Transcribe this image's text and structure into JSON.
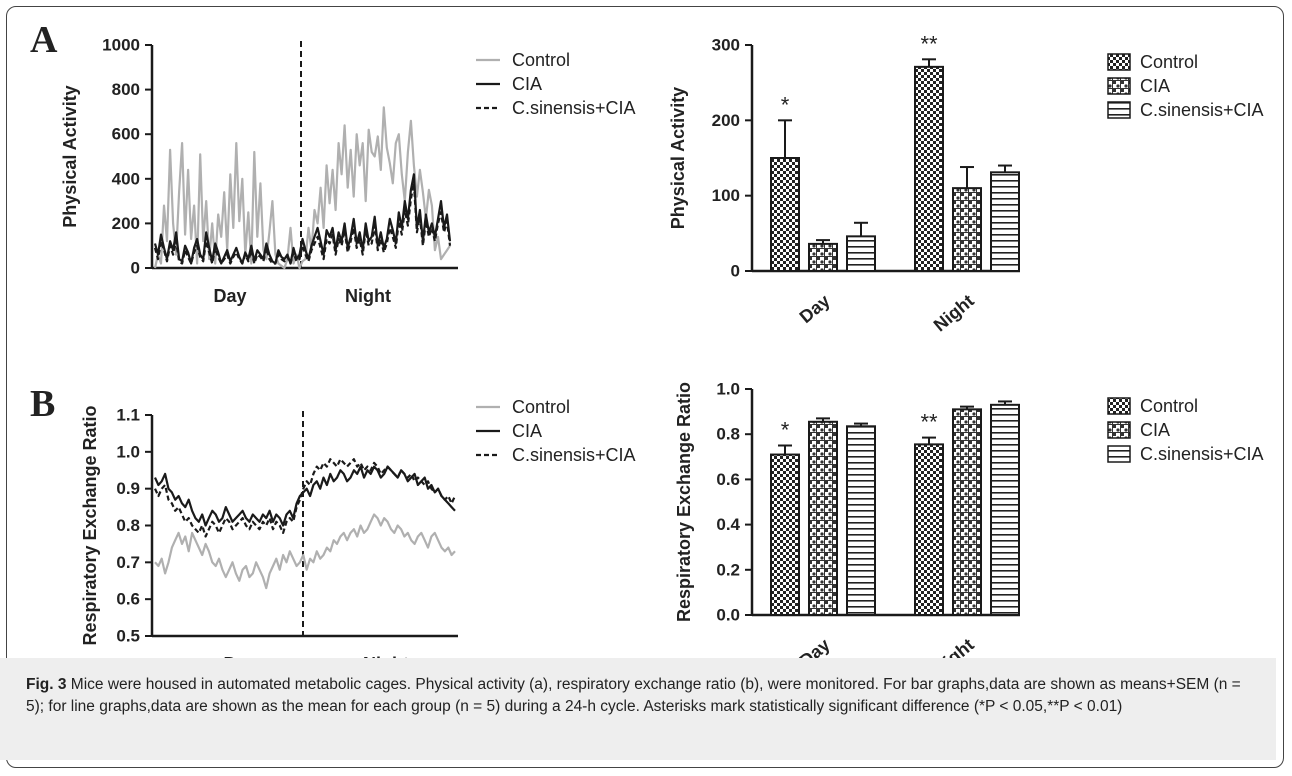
{
  "figure": {
    "panel_a": "A",
    "panel_b": "B",
    "caption": {
      "label": "Fig. 3",
      "text": " Mice were housed in automated metabolic cages. Physical activity (a), respiratory exchange ratio (b), were monitored. For bar graphs,data are shown as means+SEM (n = 5); for line graphs,data are shown as the mean for each group (n = 5) during a 24-h cycle. Asterisks mark statistically significant difference (*P < 0.05,**P < 0.01)"
    }
  },
  "colors": {
    "control": "#b0b0b0",
    "cia": "#1a1a1a",
    "csinensis": "#1a1a1a",
    "axis": "#1a1a1a"
  },
  "chart_data": [
    {
      "id": "activity-line",
      "type": "line",
      "ylabel": "Physical Activity",
      "yticks": [
        "0",
        "200",
        "400",
        "600",
        "800",
        "1000"
      ],
      "ylim": [
        0,
        1000
      ],
      "xcategory_labels": [
        "Day",
        "Night"
      ],
      "divider_label": "",
      "legend_position": "top-right",
      "series": [
        {
          "name": "Control",
          "style": "solid-grey",
          "values": [
            0,
            60,
            20,
            280,
            120,
            530,
            200,
            60,
            340,
            560,
            150,
            440,
            130,
            280,
            20,
            510,
            120,
            300,
            40,
            200,
            20,
            240,
            140,
            340,
            80,
            420,
            180,
            560,
            210,
            400,
            60,
            250,
            20,
            520,
            140,
            380,
            80,
            40,
            160,
            300,
            60,
            20,
            10,
            0,
            40,
            180,
            20,
            60,
            0,
            30,
            40,
            180,
            80,
            260,
            200,
            360,
            180,
            460,
            290,
            440,
            260,
            560,
            420,
            640,
            360,
            530,
            320,
            600,
            460,
            560,
            300,
            620,
            520,
            500,
            590,
            440,
            720,
            540,
            470,
            380,
            560,
            600,
            420,
            300,
            520,
            660,
            460,
            320,
            440,
            340,
            220,
            350,
            280,
            80,
            140,
            40,
            60,
            80,
            100
          ]
        },
        {
          "name": "CIA",
          "style": "solid-black",
          "values": [
            110,
            60,
            150,
            90,
            40,
            120,
            80,
            160,
            40,
            30,
            100,
            70,
            20,
            90,
            130,
            60,
            40,
            160,
            90,
            30,
            110,
            70,
            20,
            50,
            80,
            30,
            60,
            90,
            50,
            20,
            70,
            40,
            100,
            30,
            80,
            60,
            40,
            110,
            60,
            30,
            20,
            80,
            50,
            40,
            60,
            20,
            90,
            40,
            60,
            130,
            80,
            40,
            100,
            140,
            180,
            120,
            60,
            170,
            140,
            180,
            80,
            160,
            120,
            200,
            90,
            140,
            220,
            110,
            160,
            80,
            200,
            120,
            140,
            230,
            100,
            160,
            90,
            130,
            220,
            170,
            110,
            250,
            180,
            300,
            220,
            350,
            420,
            180,
            260,
            120,
            240,
            160,
            200,
            140,
            220,
            300,
            180,
            240,
            120
          ]
        },
        {
          "name": "C.sinensis+CIA",
          "style": "dashed-black",
          "values": [
            90,
            40,
            120,
            80,
            30,
            100,
            60,
            120,
            30,
            20,
            80,
            50,
            20,
            70,
            100,
            50,
            30,
            120,
            70,
            20,
            90,
            50,
            20,
            40,
            60,
            20,
            50,
            70,
            40,
            20,
            60,
            30,
            80,
            20,
            60,
            50,
            30,
            90,
            40,
            20,
            20,
            60,
            40,
            30,
            50,
            20,
            70,
            30,
            40,
            100,
            60,
            30,
            80,
            110,
            140,
            90,
            40,
            130,
            110,
            150,
            60,
            130,
            100,
            170,
            70,
            120,
            180,
            90,
            130,
            60,
            170,
            100,
            110,
            190,
            80,
            130,
            70,
            110,
            180,
            140,
            90,
            210,
            150,
            260,
            190,
            310,
            380,
            160,
            230,
            100,
            210,
            140,
            180,
            120,
            200,
            250,
            160,
            210,
            100
          ]
        }
      ]
    },
    {
      "id": "activity-bar",
      "type": "bar",
      "ylabel": "Physical Activity",
      "yticks": [
        "0",
        "100",
        "200",
        "300"
      ],
      "ylim": [
        0,
        300
      ],
      "categories": [
        "Day",
        "Night"
      ],
      "legend_position": "top-right",
      "series": [
        {
          "name": "Control",
          "pattern": "check",
          "values": [
            150,
            271
          ],
          "sem": [
            50,
            10
          ]
        },
        {
          "name": "CIA",
          "pattern": "wave",
          "values": [
            36,
            110
          ],
          "sem": [
            5,
            28
          ]
        },
        {
          "name": "C.sinensis+CIA",
          "pattern": "hlines",
          "values": [
            46,
            131
          ],
          "sem": [
            18,
            9
          ]
        }
      ],
      "annotations": [
        {
          "text": "*",
          "category": 0
        },
        {
          "text": "**",
          "category": 1
        }
      ]
    },
    {
      "id": "rer-line",
      "type": "line",
      "ylabel": "Respiratory Exchange Ratio",
      "yticks": [
        "0.5",
        "0.6",
        "0.7",
        "0.8",
        "0.9",
        "1.0",
        "1.1"
      ],
      "ylim": [
        0.5,
        1.1
      ],
      "xcategory_labels": [
        "Day",
        "Night"
      ],
      "legend_position": "top-right",
      "series": [
        {
          "name": "Control",
          "style": "solid-grey",
          "values": [
            0.7,
            0.69,
            0.71,
            0.67,
            0.7,
            0.74,
            0.76,
            0.78,
            0.75,
            0.77,
            0.73,
            0.78,
            0.76,
            0.74,
            0.72,
            0.75,
            0.73,
            0.7,
            0.69,
            0.71,
            0.68,
            0.66,
            0.68,
            0.7,
            0.67,
            0.65,
            0.68,
            0.69,
            0.66,
            0.67,
            0.7,
            0.68,
            0.66,
            0.63,
            0.67,
            0.69,
            0.71,
            0.68,
            0.72,
            0.7,
            0.73,
            0.71,
            0.69,
            0.7,
            0.72,
            0.68,
            0.71,
            0.7,
            0.73,
            0.71,
            0.72,
            0.74,
            0.73,
            0.76,
            0.75,
            0.77,
            0.78,
            0.76,
            0.78,
            0.79,
            0.77,
            0.8,
            0.78,
            0.79,
            0.81,
            0.83,
            0.82,
            0.8,
            0.82,
            0.81,
            0.79,
            0.78,
            0.8,
            0.79,
            0.77,
            0.78,
            0.76,
            0.75,
            0.77,
            0.78,
            0.76,
            0.74,
            0.77,
            0.78,
            0.76,
            0.74,
            0.73,
            0.74,
            0.72,
            0.73
          ]
        },
        {
          "name": "CIA",
          "style": "solid-black",
          "values": [
            0.93,
            0.91,
            0.92,
            0.94,
            0.9,
            0.89,
            0.87,
            0.88,
            0.86,
            0.85,
            0.87,
            0.84,
            0.82,
            0.81,
            0.83,
            0.8,
            0.82,
            0.84,
            0.83,
            0.81,
            0.82,
            0.85,
            0.83,
            0.81,
            0.82,
            0.83,
            0.84,
            0.82,
            0.81,
            0.83,
            0.82,
            0.81,
            0.83,
            0.82,
            0.84,
            0.81,
            0.83,
            0.82,
            0.8,
            0.83,
            0.84,
            0.82,
            0.86,
            0.88,
            0.89,
            0.9,
            0.88,
            0.91,
            0.92,
            0.9,
            0.93,
            0.91,
            0.94,
            0.92,
            0.93,
            0.95,
            0.94,
            0.92,
            0.93,
            0.95,
            0.94,
            0.96,
            0.93,
            0.95,
            0.94,
            0.96,
            0.95,
            0.93,
            0.94,
            0.96,
            0.95,
            0.94,
            0.93,
            0.95,
            0.94,
            0.92,
            0.93,
            0.94,
            0.91,
            0.92,
            0.93,
            0.9,
            0.91,
            0.89,
            0.9,
            0.88,
            0.87,
            0.86,
            0.85,
            0.84
          ]
        },
        {
          "name": "C.sinensis+CIA",
          "style": "dashed-black",
          "values": [
            0.9,
            0.88,
            0.9,
            0.91,
            0.87,
            0.86,
            0.84,
            0.85,
            0.83,
            0.81,
            0.82,
            0.8,
            0.79,
            0.78,
            0.8,
            0.77,
            0.79,
            0.81,
            0.8,
            0.78,
            0.8,
            0.82,
            0.81,
            0.79,
            0.8,
            0.81,
            0.82,
            0.8,
            0.79,
            0.81,
            0.8,
            0.79,
            0.81,
            0.8,
            0.82,
            0.79,
            0.81,
            0.8,
            0.78,
            0.81,
            0.82,
            0.81,
            0.85,
            0.87,
            0.9,
            0.92,
            0.91,
            0.94,
            0.96,
            0.95,
            0.97,
            0.96,
            0.98,
            0.97,
            0.96,
            0.98,
            0.97,
            0.96,
            0.97,
            0.98,
            0.96,
            0.97,
            0.95,
            0.96,
            0.95,
            0.97,
            0.96,
            0.94,
            0.95,
            0.96,
            0.95,
            0.94,
            0.93,
            0.95,
            0.94,
            0.93,
            0.94,
            0.92,
            0.93,
            0.92,
            0.91,
            0.92,
            0.9,
            0.89,
            0.9,
            0.88,
            0.87,
            0.88,
            0.86,
            0.88
          ]
        }
      ]
    },
    {
      "id": "rer-bar",
      "type": "bar",
      "ylabel": "Respiratory Exchange Ratio",
      "yticks": [
        "0.0",
        "0.2",
        "0.4",
        "0.6",
        "0.8",
        "1.0"
      ],
      "ylim": [
        0,
        1.0
      ],
      "categories": [
        "Day",
        "Night"
      ],
      "legend_position": "top-right",
      "series": [
        {
          "name": "Control",
          "pattern": "check",
          "values": [
            0.71,
            0.755
          ],
          "sem": [
            0.04,
            0.03
          ]
        },
        {
          "name": "CIA",
          "pattern": "wave",
          "values": [
            0.855,
            0.91
          ],
          "sem": [
            0.015,
            0.012
          ]
        },
        {
          "name": "C.sinensis+CIA",
          "pattern": "hlines",
          "values": [
            0.835,
            0.93
          ],
          "sem": [
            0.012,
            0.015
          ]
        }
      ],
      "annotations": [
        {
          "text": "*",
          "category": 0
        },
        {
          "text": "**",
          "category": 1
        }
      ]
    }
  ]
}
